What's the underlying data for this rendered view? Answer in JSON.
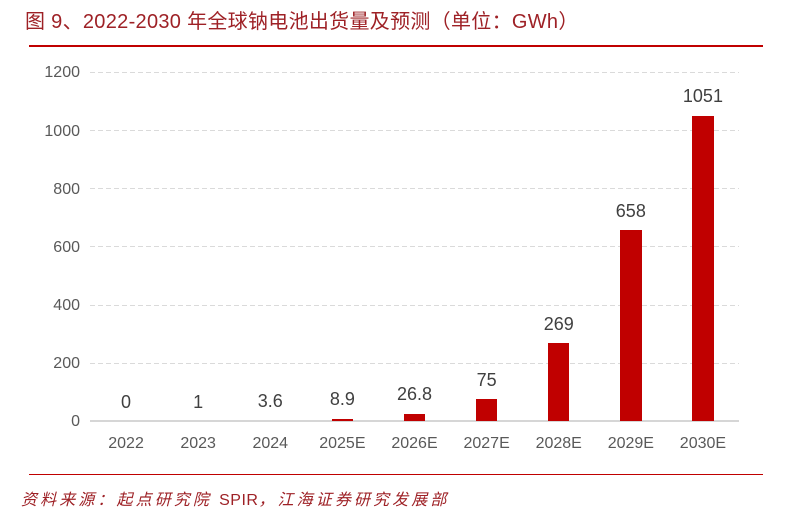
{
  "figure": {
    "title": "图 9、2022-2030 年全球钠电池出货量及预测（单位：GWh）",
    "source": {
      "prefix": "资料来源：起点研究院 ",
      "latin": "SPIR",
      "suffix": "，江海证券研究发展部"
    }
  },
  "colors": {
    "title_text": "#9e2126",
    "rule_red": "#c00000",
    "bar_red": "#c00000",
    "axis_label_gray": "#595959",
    "data_label_gray": "#404040",
    "gridline_gray": "#dadada",
    "axis_line_gray": "#d6d6d6",
    "background": "#ffffff"
  },
  "chart_data": {
    "type": "bar",
    "title": "2022-2030 年全球钠电池出货量及预测（单位：GWh）",
    "categories": [
      "2022",
      "2023",
      "2024",
      "2025E",
      "2026E",
      "2027E",
      "2028E",
      "2029E",
      "2030E"
    ],
    "values": [
      0,
      1,
      3.6,
      8.9,
      26.8,
      75,
      269,
      658,
      1051
    ],
    "labels": [
      "0",
      "1",
      "3.6",
      "8.9",
      "26.8",
      "75",
      "269",
      "658",
      "1051"
    ],
    "xlabel": "",
    "ylabel": "",
    "ylim": [
      0,
      1200
    ],
    "yticks": [
      0,
      200,
      400,
      600,
      800,
      1000,
      1200
    ],
    "grid": "dashed horizontal",
    "legend": "none",
    "bar_color": "#c00000"
  }
}
